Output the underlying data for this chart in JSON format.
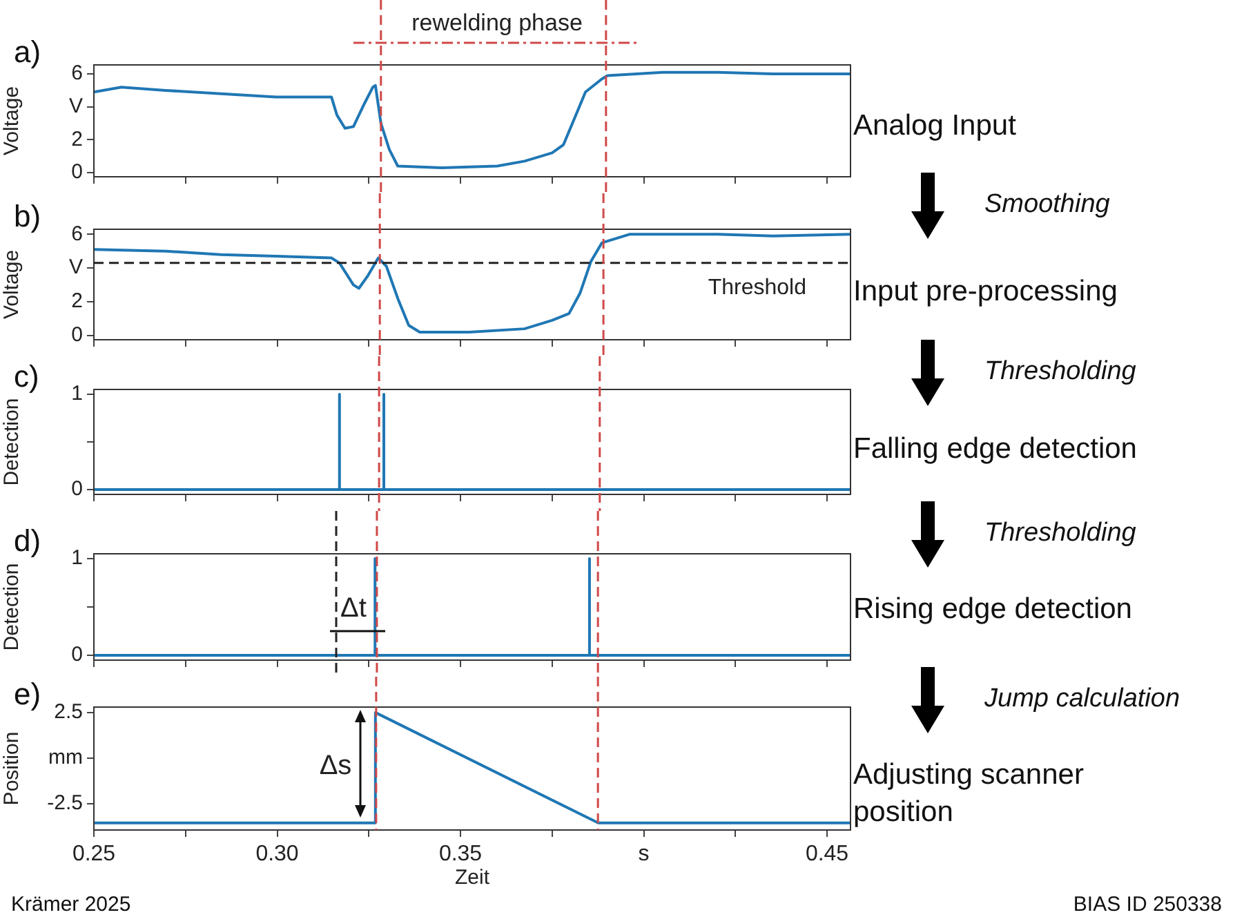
{
  "chart_data": [
    {
      "type": "line",
      "title": "a)",
      "ylabel": "Voltage",
      "xlim": [
        0.25,
        0.4564
      ],
      "ylim": [
        -0.25,
        6.55
      ],
      "xticks": [
        {
          "value": 0.25,
          "label": null
        },
        {
          "value": 0.275,
          "label": null
        },
        {
          "value": 0.3,
          "label": null
        },
        {
          "value": 0.325,
          "label": null
        },
        {
          "value": 0.35,
          "label": null
        },
        {
          "value": 0.375,
          "label": null
        },
        {
          "value": 0.4,
          "label": null
        },
        {
          "value": 0.425,
          "label": null
        },
        {
          "value": 0.45,
          "label": null
        }
      ],
      "yticks": [
        0,
        2,
        {
          "value": 4,
          "label": "V"
        },
        6
      ],
      "tick_labels": "y",
      "series": [
        {
          "color": "#1f77b4",
          "x": [
            0.25,
            0.2575,
            0.2696,
            0.2847,
            0.2997,
            0.3148,
            0.3163,
            0.3185,
            0.3208,
            0.3238,
            0.3261,
            0.3268,
            0.3283,
            0.3306,
            0.3329,
            0.3449,
            0.36,
            0.3675,
            0.375,
            0.3781,
            0.3811,
            0.3841,
            0.3886,
            0.3901,
            0.4052,
            0.4202,
            0.4353,
            0.4564
          ],
          "values": [
            4.9,
            5.2,
            5.0,
            4.8,
            4.6,
            4.6,
            3.5,
            2.7,
            2.8,
            4.2,
            5.2,
            5.3,
            3.0,
            1.4,
            0.4,
            0.3,
            0.4,
            0.7,
            1.2,
            1.7,
            3.3,
            4.9,
            5.7,
            5.9,
            6.1,
            6.1,
            6.0,
            6.0
          ]
        }
      ],
      "ref_lines": [
        {
          "axis": "x",
          "value": 0.3283,
          "color": "#d04848",
          "line_style": "dashed"
        },
        {
          "axis": "x",
          "value": 0.3897,
          "color": "#d04848",
          "line_style": "dashed"
        }
      ],
      "annotations": [
        "rewelding phase"
      ]
    },
    {
      "type": "line",
      "title": "b)",
      "ylabel": "Voltage",
      "xlim": [
        0.25,
        0.4564
      ],
      "ylim": [
        -0.25,
        6.3
      ],
      "xticks": [
        {
          "value": 0.25,
          "label": null
        },
        {
          "value": 0.275,
          "label": null
        },
        {
          "value": 0.3,
          "label": null
        },
        {
          "value": 0.325,
          "label": null
        },
        {
          "value": 0.35,
          "label": null
        },
        {
          "value": 0.375,
          "label": null
        },
        {
          "value": 0.4,
          "label": null
        },
        {
          "value": 0.425,
          "label": null
        },
        {
          "value": 0.45,
          "label": null
        }
      ],
      "yticks": [
        0,
        2,
        {
          "value": 4,
          "label": "V"
        },
        6
      ],
      "tick_labels": "y",
      "series": [
        {
          "color": "#1f77b4",
          "x": [
            0.25,
            0.2696,
            0.2847,
            0.2997,
            0.3148,
            0.317,
            0.3208,
            0.3223,
            0.3246,
            0.3276,
            0.3298,
            0.3329,
            0.3359,
            0.3389,
            0.3524,
            0.3675,
            0.375,
            0.3796,
            0.3826,
            0.3856,
            0.3886,
            0.3961,
            0.4202,
            0.4353,
            0.4564
          ],
          "values": [
            5.1,
            5.0,
            4.8,
            4.7,
            4.6,
            4.3,
            3.0,
            2.8,
            3.5,
            4.6,
            4.1,
            2.2,
            0.6,
            0.2,
            0.2,
            0.4,
            0.9,
            1.3,
            2.5,
            4.4,
            5.5,
            6.0,
            6.0,
            5.9,
            6.0
          ]
        }
      ],
      "ref_lines": [
        {
          "axis": "y",
          "value": 4.3,
          "label": "Threshold",
          "color": "#222222",
          "line_style": "dashed"
        },
        {
          "axis": "x",
          "value": 0.328,
          "color": "#d04848",
          "line_style": "dashed"
        },
        {
          "axis": "x",
          "value": 0.389,
          "color": "#d04848",
          "line_style": "dashed"
        }
      ]
    },
    {
      "type": "line",
      "title": "c)",
      "ylabel": "Detection",
      "xlim": [
        0.25,
        0.4564
      ],
      "ylim": [
        -0.05,
        1.05
      ],
      "xticks": [
        {
          "value": 0.25,
          "label": null
        },
        {
          "value": 0.275,
          "label": null
        },
        {
          "value": 0.3,
          "label": null
        },
        {
          "value": 0.325,
          "label": null
        },
        {
          "value": 0.35,
          "label": null
        },
        {
          "value": 0.375,
          "label": null
        },
        {
          "value": 0.4,
          "label": null
        },
        {
          "value": 0.425,
          "label": null
        },
        {
          "value": 0.45,
          "label": null
        }
      ],
      "yticks": [
        0,
        {
          "value": 0.5,
          "label": null
        },
        1
      ],
      "tick_labels": "y",
      "series": [
        {
          "color": "#1f77b4",
          "x": [
            0.25,
            0.317,
            0.317,
            0.317,
            0.3291,
            0.3291,
            0.3291,
            0.4564
          ],
          "values": [
            0,
            0,
            1,
            0,
            0,
            1,
            0,
            0
          ]
        }
      ],
      "ref_lines": [
        {
          "axis": "x",
          "value": 0.3278,
          "color": "#d04848",
          "line_style": "dashed"
        },
        {
          "axis": "x",
          "value": 0.388,
          "color": "#d04848",
          "line_style": "dashed"
        }
      ]
    },
    {
      "type": "line",
      "title": "d)",
      "ylabel": "Detection",
      "xlim": [
        0.25,
        0.4564
      ],
      "ylim": [
        -0.05,
        1.05
      ],
      "xticks": [
        {
          "value": 0.25,
          "label": null
        },
        {
          "value": 0.275,
          "label": null
        },
        {
          "value": 0.3,
          "label": null
        },
        {
          "value": 0.325,
          "label": null
        },
        {
          "value": 0.35,
          "label": null
        },
        {
          "value": 0.375,
          "label": null
        },
        {
          "value": 0.4,
          "label": null
        },
        {
          "value": 0.425,
          "label": null
        },
        {
          "value": 0.45,
          "label": null
        }
      ],
      "yticks": [
        0,
        {
          "value": 0.5,
          "label": null
        },
        1
      ],
      "tick_labels": "y",
      "series": [
        {
          "color": "#1f77b4",
          "x": [
            0.25,
            0.3267,
            0.3267,
            0.3267,
            0.3852,
            0.3852,
            0.3852,
            0.4564
          ],
          "values": [
            0,
            0,
            1,
            0,
            0,
            1,
            0,
            0
          ]
        }
      ],
      "ref_lines": [
        {
          "axis": "x",
          "value": 0.3161,
          "color": "#222222",
          "line_style": "dashed"
        },
        {
          "axis": "x",
          "value": 0.3272,
          "color": "#d04848",
          "line_style": "dashed"
        },
        {
          "axis": "x",
          "value": 0.3875,
          "color": "#d04848",
          "line_style": "dashed"
        }
      ],
      "annotations": [
        "Δt"
      ]
    },
    {
      "type": "line",
      "title": "e)",
      "ylabel": "Position",
      "xlabel": "Zeit",
      "xlim": [
        0.25,
        0.4564
      ],
      "ylim": [
        -3.95,
        2.8
      ],
      "xticks": [
        0.25,
        {
          "value": 0.275,
          "label": null
        },
        {
          "value": 0.3,
          "label": "0.30"
        },
        {
          "value": 0.325,
          "label": null
        },
        0.35,
        {
          "value": 0.375,
          "label": null
        },
        {
          "value": 0.4,
          "label": "s"
        },
        {
          "value": 0.425,
          "label": null
        },
        0.45
      ],
      "yticks": [
        2.5,
        {
          "value": 0,
          "label": "mm"
        },
        -2.5
      ],
      "series": [
        {
          "color": "#1f77b4",
          "x": [
            0.25,
            0.3268,
            0.3268,
            0.3876,
            0.4564
          ],
          "values": [
            -3.56,
            -3.56,
            2.5,
            -3.56,
            -3.56
          ]
        }
      ],
      "ref_lines": [
        {
          "axis": "x",
          "value": 0.327,
          "color": "#d04848",
          "line_style": "dashed"
        },
        {
          "axis": "x",
          "value": 0.3875,
          "color": "#d04848",
          "line_style": "dashed"
        }
      ],
      "annotations": [
        "Δs"
      ]
    },
    {
      "type": "other",
      "annotations": [
        "Analog Input",
        "Smoothing",
        "Input pre-processing",
        "Thresholding",
        "Falling edge detection",
        "Thresholding",
        "Rising edge detection",
        "Jump calculation",
        "Adjusting scanner position",
        "Krämer 2025",
        "BIAS ID 250338"
      ]
    }
  ]
}
